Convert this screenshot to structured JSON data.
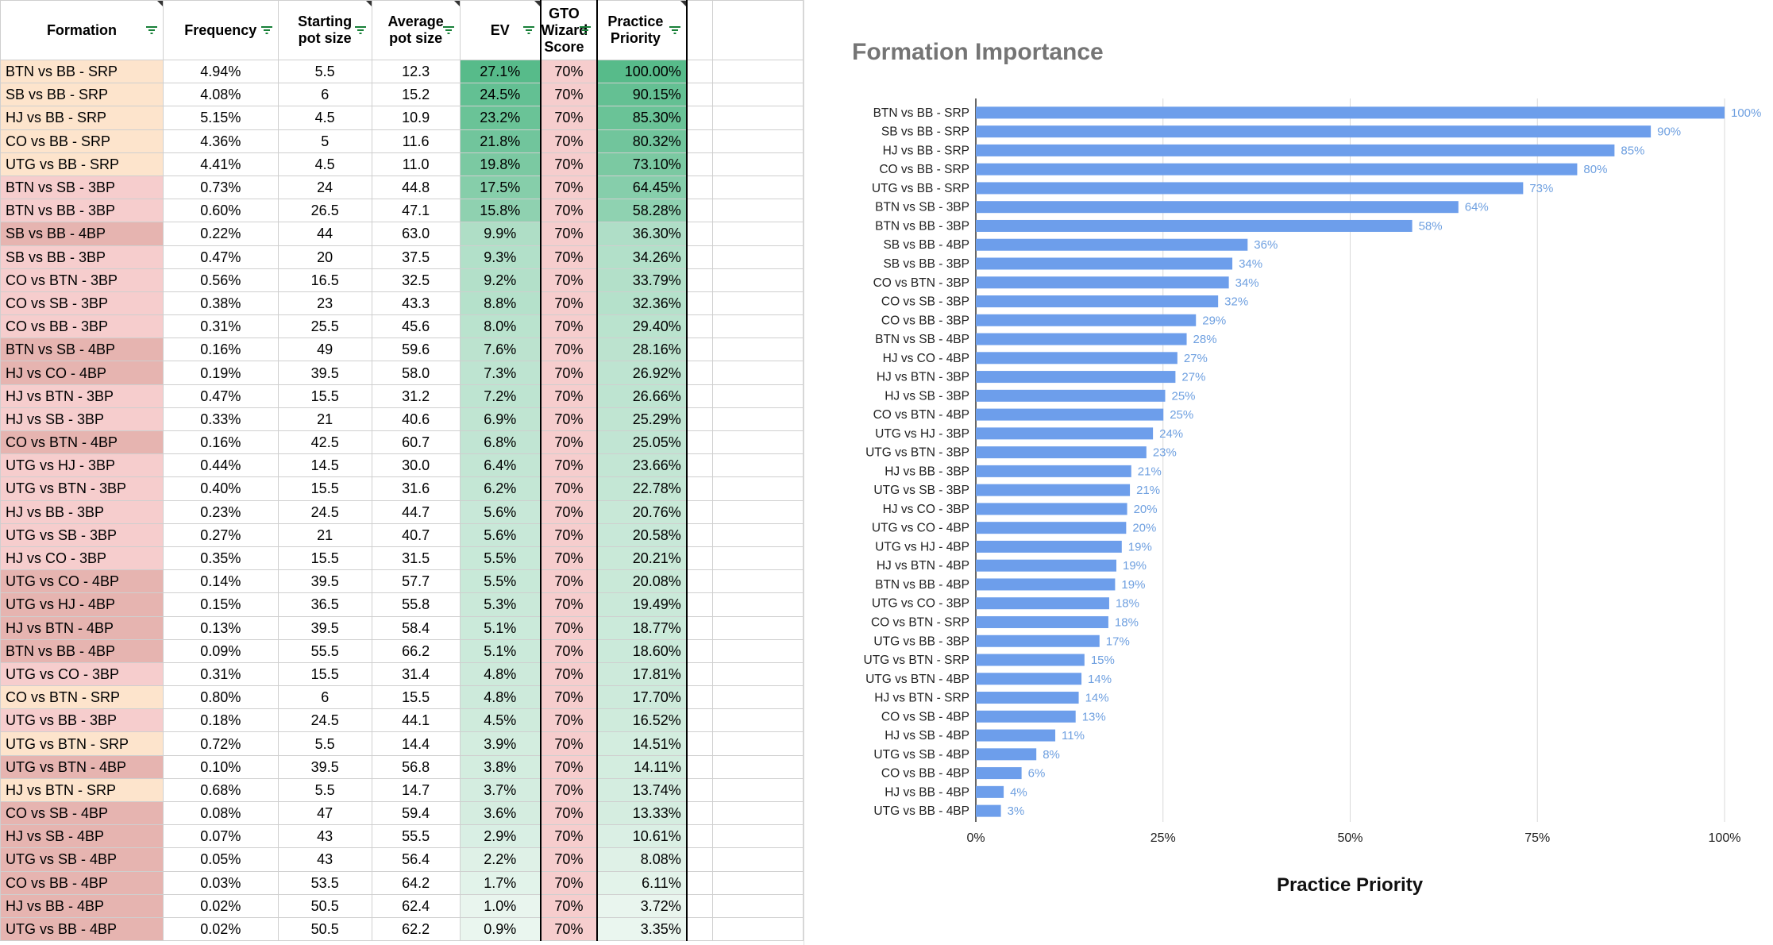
{
  "table": {
    "headers": [
      "Formation",
      "Frequency",
      "Starting pot size",
      "Average pot size",
      "EV",
      "GTO Wizard Score",
      "Practice Priority"
    ],
    "rows": [
      [
        "BTN vs BB - SRP",
        "4.94%",
        "5.5",
        "12.3",
        "27.1%",
        "70%",
        "100.00%"
      ],
      [
        "SB vs BB - SRP",
        "4.08%",
        "6",
        "15.2",
        "24.5%",
        "70%",
        "90.15%"
      ],
      [
        "HJ vs BB - SRP",
        "5.15%",
        "4.5",
        "10.9",
        "23.2%",
        "70%",
        "85.30%"
      ],
      [
        "CO vs BB - SRP",
        "4.36%",
        "5",
        "11.6",
        "21.8%",
        "70%",
        "80.32%"
      ],
      [
        "UTG vs BB - SRP",
        "4.41%",
        "4.5",
        "11.0",
        "19.8%",
        "70%",
        "73.10%"
      ],
      [
        "BTN vs SB - 3BP",
        "0.73%",
        "24",
        "44.8",
        "17.5%",
        "70%",
        "64.45%"
      ],
      [
        "BTN vs BB - 3BP",
        "0.60%",
        "26.5",
        "47.1",
        "15.8%",
        "70%",
        "58.28%"
      ],
      [
        "SB vs BB - 4BP",
        "0.22%",
        "44",
        "63.0",
        "9.9%",
        "70%",
        "36.30%"
      ],
      [
        "SB vs BB - 3BP",
        "0.47%",
        "20",
        "37.5",
        "9.3%",
        "70%",
        "34.26%"
      ],
      [
        "CO vs BTN - 3BP",
        "0.56%",
        "16.5",
        "32.5",
        "9.2%",
        "70%",
        "33.79%"
      ],
      [
        "CO vs SB - 3BP",
        "0.38%",
        "23",
        "43.3",
        "8.8%",
        "70%",
        "32.36%"
      ],
      [
        "CO vs BB - 3BP",
        "0.31%",
        "25.5",
        "45.6",
        "8.0%",
        "70%",
        "29.40%"
      ],
      [
        "BTN vs SB - 4BP",
        "0.16%",
        "49",
        "59.6",
        "7.6%",
        "70%",
        "28.16%"
      ],
      [
        "HJ vs CO - 4BP",
        "0.19%",
        "39.5",
        "58.0",
        "7.3%",
        "70%",
        "26.92%"
      ],
      [
        "HJ vs BTN - 3BP",
        "0.47%",
        "15.5",
        "31.2",
        "7.2%",
        "70%",
        "26.66%"
      ],
      [
        "HJ vs SB - 3BP",
        "0.33%",
        "21",
        "40.6",
        "6.9%",
        "70%",
        "25.29%"
      ],
      [
        "CO vs BTN - 4BP",
        "0.16%",
        "42.5",
        "60.7",
        "6.8%",
        "70%",
        "25.05%"
      ],
      [
        "UTG vs HJ - 3BP",
        "0.44%",
        "14.5",
        "30.0",
        "6.4%",
        "70%",
        "23.66%"
      ],
      [
        "UTG vs BTN - 3BP",
        "0.40%",
        "15.5",
        "31.6",
        "6.2%",
        "70%",
        "22.78%"
      ],
      [
        "HJ vs BB - 3BP",
        "0.23%",
        "24.5",
        "44.7",
        "5.6%",
        "70%",
        "20.76%"
      ],
      [
        "UTG vs SB - 3BP",
        "0.27%",
        "21",
        "40.7",
        "5.6%",
        "70%",
        "20.58%"
      ],
      [
        "HJ vs CO - 3BP",
        "0.35%",
        "15.5",
        "31.5",
        "5.5%",
        "70%",
        "20.21%"
      ],
      [
        "UTG vs CO - 4BP",
        "0.14%",
        "39.5",
        "57.7",
        "5.5%",
        "70%",
        "20.08%"
      ],
      [
        "UTG vs HJ - 4BP",
        "0.15%",
        "36.5",
        "55.8",
        "5.3%",
        "70%",
        "19.49%"
      ],
      [
        "HJ vs BTN - 4BP",
        "0.13%",
        "39.5",
        "58.4",
        "5.1%",
        "70%",
        "18.77%"
      ],
      [
        "BTN vs BB - 4BP",
        "0.09%",
        "55.5",
        "66.2",
        "5.1%",
        "70%",
        "18.60%"
      ],
      [
        "UTG vs CO - 3BP",
        "0.31%",
        "15.5",
        "31.4",
        "4.8%",
        "70%",
        "17.81%"
      ],
      [
        "CO vs BTN - SRP",
        "0.80%",
        "6",
        "15.5",
        "4.8%",
        "70%",
        "17.70%"
      ],
      [
        "UTG vs BB - 3BP",
        "0.18%",
        "24.5",
        "44.1",
        "4.5%",
        "70%",
        "16.52%"
      ],
      [
        "UTG vs BTN - SRP",
        "0.72%",
        "5.5",
        "14.4",
        "3.9%",
        "70%",
        "14.51%"
      ],
      [
        "UTG vs BTN - 4BP",
        "0.10%",
        "39.5",
        "56.8",
        "3.8%",
        "70%",
        "14.11%"
      ],
      [
        "HJ vs BTN - SRP",
        "0.68%",
        "5.5",
        "14.7",
        "3.7%",
        "70%",
        "13.74%"
      ],
      [
        "CO vs SB - 4BP",
        "0.08%",
        "47",
        "59.4",
        "3.6%",
        "70%",
        "13.33%"
      ],
      [
        "HJ vs SB - 4BP",
        "0.07%",
        "43",
        "55.5",
        "2.9%",
        "70%",
        "10.61%"
      ],
      [
        "UTG vs SB - 4BP",
        "0.05%",
        "43",
        "56.4",
        "2.2%",
        "70%",
        "8.08%"
      ],
      [
        "CO vs BB - 4BP",
        "0.03%",
        "53.5",
        "64.2",
        "1.7%",
        "70%",
        "6.11%"
      ],
      [
        "HJ vs BB - 4BP",
        "0.02%",
        "50.5",
        "62.4",
        "1.0%",
        "70%",
        "3.72%"
      ],
      [
        "UTG vs BB - 4BP",
        "0.02%",
        "50.5",
        "62.2",
        "0.9%",
        "70%",
        "3.35%"
      ]
    ],
    "colors": {
      "srp": "#fde4cc",
      "threebp": "#f6cdcd",
      "fourbp": "#e6b4b0",
      "gto": "#f6cdcd",
      "green_dark": "#57bb8a",
      "green_light": "#eaf6ef",
      "header_line": "#000000"
    }
  },
  "chart_data": {
    "type": "bar",
    "orientation": "horizontal",
    "title": "Formation Importance",
    "xlabel": "Practice Priority",
    "ylabel": "",
    "xlim": [
      0,
      100
    ],
    "x_ticks": [
      "0%",
      "25%",
      "50%",
      "75%",
      "100%"
    ],
    "grid": true,
    "bar_color": "#6d9eeb",
    "label_color": "#6fa0e0",
    "categories": [
      "BTN vs BB - SRP",
      "SB vs BB - SRP",
      "HJ vs BB - SRP",
      "CO vs BB - SRP",
      "UTG vs BB - SRP",
      "BTN vs SB - 3BP",
      "BTN vs BB - 3BP",
      "SB vs BB - 4BP",
      "SB vs BB - 3BP",
      "CO vs BTN - 3BP",
      "CO vs SB - 3BP",
      "CO vs BB - 3BP",
      "BTN vs SB - 4BP",
      "HJ vs CO - 4BP",
      "HJ vs BTN - 3BP",
      "HJ vs SB - 3BP",
      "CO vs BTN - 4BP",
      "UTG vs HJ - 3BP",
      "UTG vs BTN - 3BP",
      "HJ vs BB - 3BP",
      "UTG vs SB - 3BP",
      "HJ vs CO - 3BP",
      "UTG vs CO - 4BP",
      "UTG vs HJ - 4BP",
      "HJ vs BTN - 4BP",
      "BTN vs BB - 4BP",
      "UTG vs CO - 3BP",
      "CO vs BTN - SRP",
      "UTG vs BB - 3BP",
      "UTG vs BTN - SRP",
      "UTG vs BTN - 4BP",
      "HJ vs BTN - SRP",
      "CO vs SB - 4BP",
      "HJ vs SB - 4BP",
      "UTG vs SB - 4BP",
      "CO vs BB - 4BP",
      "HJ vs BB - 4BP",
      "UTG vs BB - 4BP"
    ],
    "values": [
      100.0,
      90.15,
      85.3,
      80.32,
      73.1,
      64.45,
      58.28,
      36.3,
      34.26,
      33.79,
      32.36,
      29.4,
      28.16,
      26.92,
      26.66,
      25.29,
      25.05,
      23.66,
      22.78,
      20.76,
      20.58,
      20.21,
      20.08,
      19.49,
      18.77,
      18.6,
      17.81,
      17.7,
      16.52,
      14.51,
      14.11,
      13.74,
      13.33,
      10.61,
      8.08,
      6.11,
      3.72,
      3.35
    ],
    "data_labels": [
      "100%",
      "90%",
      "85%",
      "80%",
      "73%",
      "64%",
      "58%",
      "36%",
      "34%",
      "34%",
      "32%",
      "29%",
      "28%",
      "27%",
      "27%",
      "25%",
      "25%",
      "24%",
      "23%",
      "21%",
      "21%",
      "20%",
      "20%",
      "19%",
      "19%",
      "19%",
      "18%",
      "18%",
      "17%",
      "15%",
      "14%",
      "14%",
      "13%",
      "11%",
      "8%",
      "6%",
      "4%",
      "3%"
    ]
  }
}
